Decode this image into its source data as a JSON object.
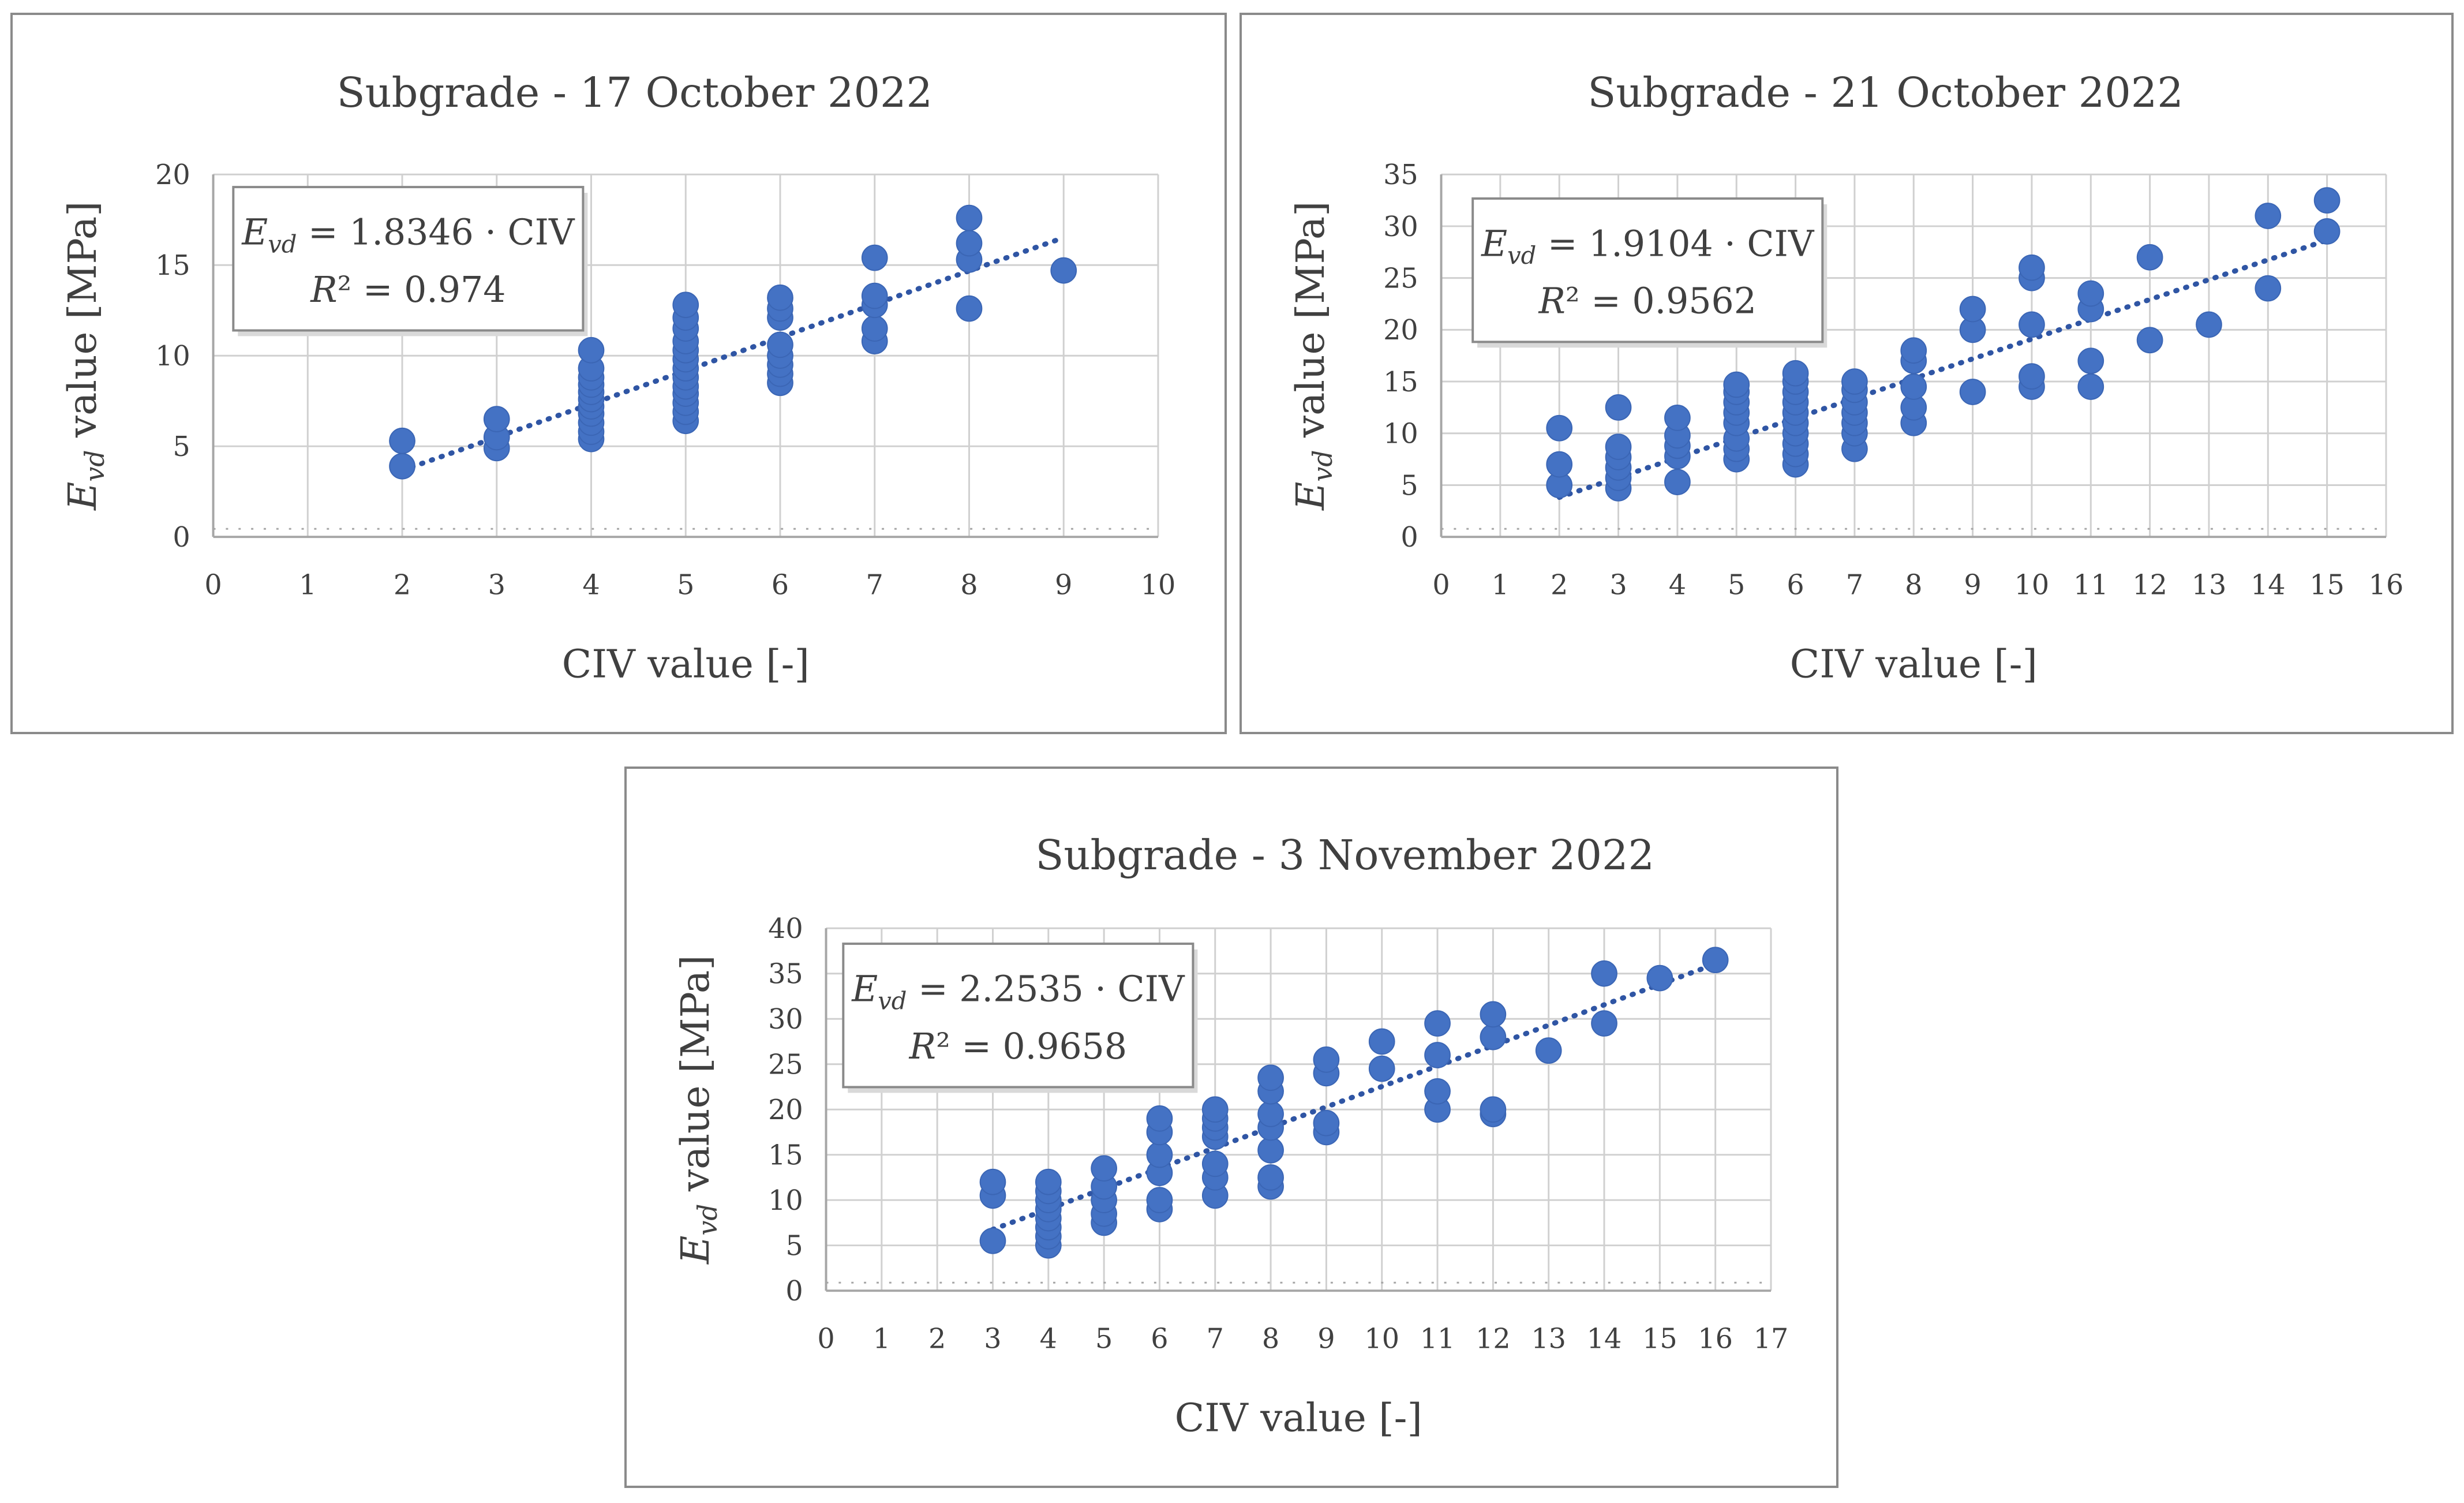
{
  "colors": {
    "marker": "#4472c4",
    "trendline": "#2f55a4",
    "grid": "#d0d0d0",
    "axis": "#a6a6a6",
    "text": "#404040",
    "frame": "#8a8a8a"
  },
  "chart_data": [
    {
      "type": "scatter",
      "title": "Subgrade - 17 October 2022",
      "xlabel": "CIV value [-]",
      "ylabel_main": "E",
      "ylabel_sub": "vd",
      "ylabel_rest": " value [MPa]",
      "xlim": [
        0,
        10
      ],
      "ylim": [
        0,
        20
      ],
      "xticks": [
        0,
        1,
        2,
        3,
        4,
        5,
        6,
        7,
        8,
        9,
        10
      ],
      "yticks": [
        0,
        5,
        10,
        15,
        20
      ],
      "grid": true,
      "trendline": {
        "slope": 1.8346,
        "intercept": 0,
        "x_range": [
          2,
          9
        ],
        "style": "dotted"
      },
      "equation": {
        "lhs_main": "E",
        "lhs_sub": "vd",
        "rhs": " = 1.8346 · CIV",
        "r2_main": "R",
        "r2_rest": "² = 0.974"
      },
      "points": [
        [
          2,
          3.9
        ],
        [
          2,
          5.3
        ],
        [
          3,
          4.9
        ],
        [
          3,
          5.5
        ],
        [
          3,
          6.5
        ],
        [
          4,
          5.4
        ],
        [
          4,
          5.8
        ],
        [
          4,
          6.3
        ],
        [
          4,
          6.8
        ],
        [
          4,
          7.2
        ],
        [
          4,
          7.6
        ],
        [
          4,
          8.0
        ],
        [
          4,
          8.4
        ],
        [
          4,
          8.8
        ],
        [
          4,
          9.3
        ],
        [
          4,
          10.3
        ],
        [
          5,
          6.4
        ],
        [
          5,
          6.9
        ],
        [
          5,
          7.4
        ],
        [
          5,
          7.9
        ],
        [
          5,
          8.3
        ],
        [
          5,
          8.8
        ],
        [
          5,
          9.3
        ],
        [
          5,
          9.8
        ],
        [
          5,
          10.3
        ],
        [
          5,
          10.8
        ],
        [
          5,
          11.5
        ],
        [
          5,
          12.1
        ],
        [
          5,
          12.8
        ],
        [
          6,
          8.5
        ],
        [
          6,
          9.0
        ],
        [
          6,
          9.5
        ],
        [
          6,
          10.0
        ],
        [
          6,
          10.6
        ],
        [
          6,
          12.1
        ],
        [
          6,
          12.6
        ],
        [
          6,
          13.2
        ],
        [
          7,
          10.8
        ],
        [
          7,
          11.5
        ],
        [
          7,
          12.8
        ],
        [
          7,
          13.3
        ],
        [
          7,
          15.4
        ],
        [
          8,
          12.6
        ],
        [
          8,
          15.3
        ],
        [
          8,
          16.2
        ],
        [
          8,
          17.6
        ],
        [
          9,
          14.7
        ]
      ]
    },
    {
      "type": "scatter",
      "title": "Subgrade - 21 October 2022",
      "xlabel": "CIV value [-]",
      "ylabel_main": "E",
      "ylabel_sub": "vd",
      "ylabel_rest": " value [MPa]",
      "xlim": [
        0,
        16
      ],
      "ylim": [
        0,
        35
      ],
      "xticks": [
        0,
        1,
        2,
        3,
        4,
        5,
        6,
        7,
        8,
        9,
        10,
        11,
        12,
        13,
        14,
        15,
        16
      ],
      "yticks": [
        0,
        5,
        10,
        15,
        20,
        25,
        30,
        35
      ],
      "grid": true,
      "trendline": {
        "slope": 1.9104,
        "intercept": 0,
        "x_range": [
          2,
          15
        ],
        "style": "dotted"
      },
      "equation": {
        "lhs_main": "E",
        "lhs_sub": "vd",
        "rhs": " = 1.9104 · CIV",
        "r2_main": "R",
        "r2_rest": "² = 0.9562"
      },
      "points": [
        [
          2,
          5.0
        ],
        [
          2,
          7.0
        ],
        [
          2,
          10.5
        ],
        [
          3,
          4.7
        ],
        [
          3,
          5.7
        ],
        [
          3,
          6.7
        ],
        [
          3,
          7.7
        ],
        [
          3,
          8.7
        ],
        [
          3,
          12.5
        ],
        [
          4,
          5.3
        ],
        [
          4,
          7.8
        ],
        [
          4,
          8.8
        ],
        [
          4,
          9.8
        ],
        [
          4,
          11.5
        ],
        [
          5,
          7.5
        ],
        [
          5,
          8.5
        ],
        [
          5,
          9.5
        ],
        [
          5,
          11.0
        ],
        [
          5,
          12.0
        ],
        [
          5,
          13.0
        ],
        [
          5,
          14.0
        ],
        [
          5,
          14.7
        ],
        [
          6,
          7.0
        ],
        [
          6,
          8.0
        ],
        [
          6,
          9.0
        ],
        [
          6,
          10.0
        ],
        [
          6,
          11.0
        ],
        [
          6,
          12.0
        ],
        [
          6,
          13.0
        ],
        [
          6,
          14.0
        ],
        [
          6,
          15.0
        ],
        [
          6,
          15.8
        ],
        [
          7,
          8.5
        ],
        [
          7,
          10.0
        ],
        [
          7,
          11.0
        ],
        [
          7,
          12.0
        ],
        [
          7,
          13.0
        ],
        [
          7,
          14.2
        ],
        [
          7,
          15.0
        ],
        [
          8,
          11.0
        ],
        [
          8,
          12.5
        ],
        [
          8,
          14.5
        ],
        [
          8,
          17.0
        ],
        [
          8,
          18.0
        ],
        [
          9,
          14.0
        ],
        [
          9,
          20.0
        ],
        [
          9,
          22.0
        ],
        [
          10,
          14.5
        ],
        [
          10,
          15.5
        ],
        [
          10,
          20.5
        ],
        [
          10,
          25.0
        ],
        [
          10,
          26.0
        ],
        [
          11,
          14.5
        ],
        [
          11,
          17.0
        ],
        [
          11,
          22.0
        ],
        [
          11,
          23.5
        ],
        [
          12,
          19.0
        ],
        [
          12,
          27.0
        ],
        [
          13,
          20.5
        ],
        [
          14,
          24.0
        ],
        [
          14,
          31.0
        ],
        [
          15,
          29.5
        ],
        [
          15,
          32.5
        ]
      ]
    },
    {
      "type": "scatter",
      "title": "Subgrade - 3 November 2022",
      "xlabel": "CIV value [-]",
      "ylabel_main": "E",
      "ylabel_sub": "vd",
      "ylabel_rest": " value [MPa]",
      "xlim": [
        0,
        17
      ],
      "ylim": [
        0,
        40
      ],
      "xticks": [
        0,
        1,
        2,
        3,
        4,
        5,
        6,
        7,
        8,
        9,
        10,
        11,
        12,
        13,
        14,
        15,
        16,
        17
      ],
      "yticks": [
        0,
        5,
        10,
        15,
        20,
        25,
        30,
        35,
        40
      ],
      "grid": true,
      "trendline": {
        "slope": 2.2535,
        "intercept": 0,
        "x_range": [
          3,
          16
        ],
        "style": "dotted"
      },
      "equation": {
        "lhs_main": "E",
        "lhs_sub": "vd",
        "rhs": " = 2.2535 · CIV",
        "r2_main": "R",
        "r2_rest": "² = 0.9658"
      },
      "points": [
        [
          3,
          5.5
        ],
        [
          3,
          10.5
        ],
        [
          3,
          12.0
        ],
        [
          4,
          5.0
        ],
        [
          4,
          6.0
        ],
        [
          4,
          7.0
        ],
        [
          4,
          8.0
        ],
        [
          4,
          9.0
        ],
        [
          4,
          10.0
        ],
        [
          4,
          11.0
        ],
        [
          4,
          12.0
        ],
        [
          5,
          7.5
        ],
        [
          5,
          8.5
        ],
        [
          5,
          10.0
        ],
        [
          5,
          11.5
        ],
        [
          5,
          13.5
        ],
        [
          6,
          9.0
        ],
        [
          6,
          10.0
        ],
        [
          6,
          13.0
        ],
        [
          6,
          15.0
        ],
        [
          6,
          17.5
        ],
        [
          6,
          19.0
        ],
        [
          7,
          10.5
        ],
        [
          7,
          12.5
        ],
        [
          7,
          14.0
        ],
        [
          7,
          17.0
        ],
        [
          7,
          18.0
        ],
        [
          7,
          19.0
        ],
        [
          7,
          20.0
        ],
        [
          8,
          11.5
        ],
        [
          8,
          12.5
        ],
        [
          8,
          15.5
        ],
        [
          8,
          18.0
        ],
        [
          8,
          19.5
        ],
        [
          8,
          22.0
        ],
        [
          8,
          23.5
        ],
        [
          9,
          17.5
        ],
        [
          9,
          18.5
        ],
        [
          9,
          24.0
        ],
        [
          9,
          25.5
        ],
        [
          10,
          24.5
        ],
        [
          10,
          27.5
        ],
        [
          11,
          20.0
        ],
        [
          11,
          22.0
        ],
        [
          11,
          26.0
        ],
        [
          11,
          29.5
        ],
        [
          12,
          19.5
        ],
        [
          12,
          20.0
        ],
        [
          12,
          28.0
        ],
        [
          12,
          30.5
        ],
        [
          13,
          26.5
        ],
        [
          14,
          29.5
        ],
        [
          14,
          35.0
        ],
        [
          15,
          34.5
        ],
        [
          16,
          36.5
        ]
      ]
    }
  ]
}
